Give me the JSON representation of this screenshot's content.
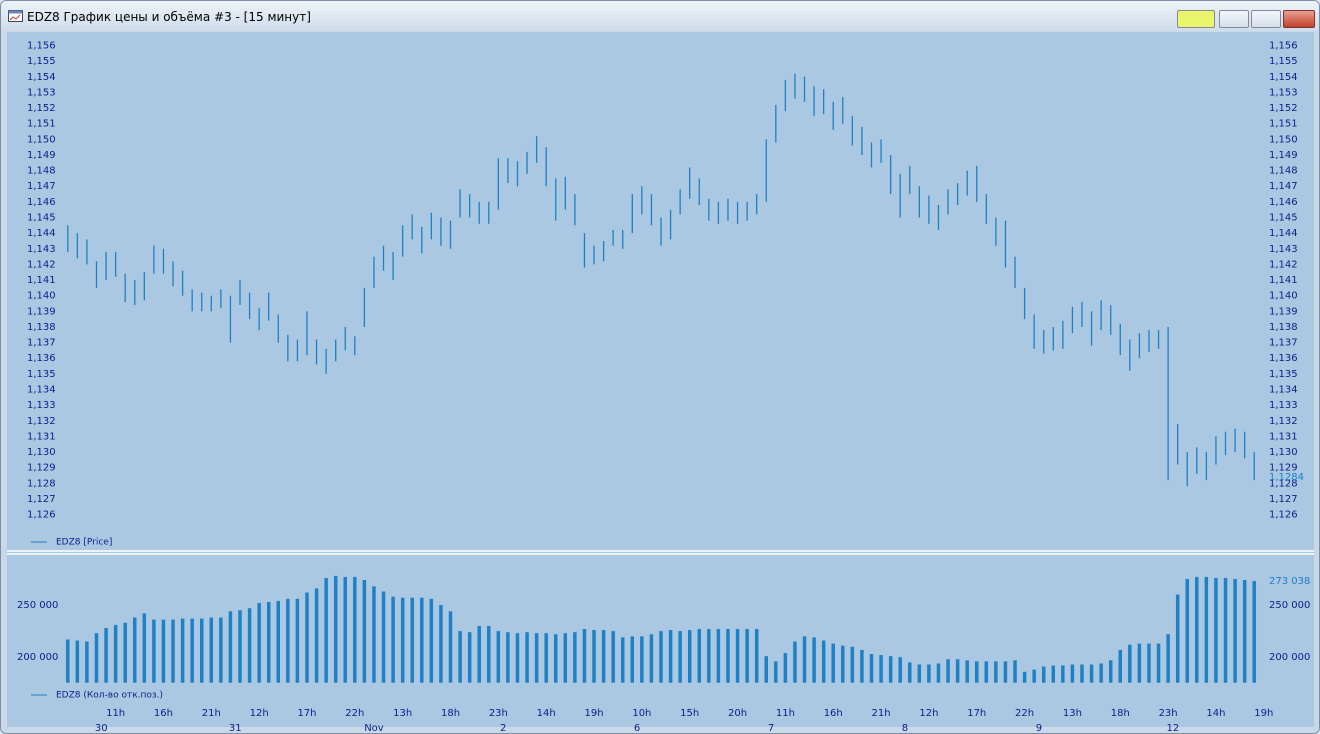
{
  "window": {
    "title": "EDZ8 График цены и объёма #3 - [15 минут]"
  },
  "chart_data": [
    {
      "type": "range",
      "legend": "EDZ8 [Price]",
      "color": "#1f80c4",
      "ylim": [
        1.1238,
        1.1568
      ],
      "xlim": [
        0,
        125
      ],
      "yticks": [
        {
          "value": 1.126,
          "label": "1,126"
        },
        {
          "value": 1.127,
          "label": "1,127"
        },
        {
          "value": 1.128,
          "label": "1,128"
        },
        {
          "value": 1.129,
          "label": "1,129"
        },
        {
          "value": 1.13,
          "label": "1,130"
        },
        {
          "value": 1.131,
          "label": "1,131"
        },
        {
          "value": 1.132,
          "label": "1,132"
        },
        {
          "value": 1.133,
          "label": "1,133"
        },
        {
          "value": 1.134,
          "label": "1,134"
        },
        {
          "value": 1.135,
          "label": "1,135"
        },
        {
          "value": 1.136,
          "label": "1,136"
        },
        {
          "value": 1.137,
          "label": "1,137"
        },
        {
          "value": 1.138,
          "label": "1,138"
        },
        {
          "value": 1.139,
          "label": "1,139"
        },
        {
          "value": 1.14,
          "label": "1,140"
        },
        {
          "value": 1.141,
          "label": "1,141"
        },
        {
          "value": 1.142,
          "label": "1,142"
        },
        {
          "value": 1.143,
          "label": "1,143"
        },
        {
          "value": 1.144,
          "label": "1,144"
        },
        {
          "value": 1.145,
          "label": "1,145"
        },
        {
          "value": 1.146,
          "label": "1,146"
        },
        {
          "value": 1.147,
          "label": "1,147"
        },
        {
          "value": 1.148,
          "label": "1,148"
        },
        {
          "value": 1.149,
          "label": "1,149"
        },
        {
          "value": 1.15,
          "label": "1,150"
        },
        {
          "value": 1.151,
          "label": "1,151"
        },
        {
          "value": 1.152,
          "label": "1,152"
        },
        {
          "value": 1.153,
          "label": "1,153"
        },
        {
          "value": 1.154,
          "label": "1,154"
        },
        {
          "value": 1.155,
          "label": "1,155"
        },
        {
          "value": 1.156,
          "label": "1,156"
        }
      ],
      "last": {
        "value": 1.1284,
        "label": "1,1284"
      },
      "high": [
        1.1445,
        1.144,
        1.1436,
        1.1422,
        1.1428,
        1.1428,
        1.1414,
        1.141,
        1.1415,
        1.1432,
        1.143,
        1.1422,
        1.1416,
        1.1404,
        1.1402,
        1.14,
        1.1404,
        1.14,
        1.141,
        1.1402,
        1.1392,
        1.1402,
        1.1388,
        1.1375,
        1.1372,
        1.139,
        1.1372,
        1.1366,
        1.1372,
        1.138,
        1.1374,
        1.1405,
        1.1425,
        1.1432,
        1.1428,
        1.1445,
        1.1452,
        1.1444,
        1.1453,
        1.145,
        1.1448,
        1.1468,
        1.1465,
        1.146,
        1.146,
        1.1488,
        1.1488,
        1.1486,
        1.1492,
        1.1502,
        1.1495,
        1.1475,
        1.1476,
        1.1465,
        1.144,
        1.1432,
        1.1435,
        1.1442,
        1.1442,
        1.1465,
        1.147,
        1.1465,
        1.145,
        1.1455,
        1.1468,
        1.1482,
        1.1475,
        1.1462,
        1.146,
        1.1462,
        1.146,
        1.146,
        1.1465,
        1.15,
        1.1522,
        1.1538,
        1.1542,
        1.154,
        1.1534,
        1.1532,
        1.1524,
        1.1527,
        1.1515,
        1.1508,
        1.1498,
        1.15,
        1.149,
        1.1478,
        1.1483,
        1.147,
        1.1464,
        1.1458,
        1.1468,
        1.1472,
        1.148,
        1.1483,
        1.1465,
        1.145,
        1.1448,
        1.1425,
        1.1405,
        1.1388,
        1.1378,
        1.138,
        1.1384,
        1.1393,
        1.1396,
        1.139,
        1.1397,
        1.1394,
        1.1382,
        1.1372,
        1.1376,
        1.1378,
        1.1378,
        1.138,
        1.1318,
        1.13,
        1.1303,
        1.13,
        1.131,
        1.1313,
        1.1315,
        1.1313,
        1.13
      ],
      "low": [
        1.1428,
        1.1424,
        1.142,
        1.1405,
        1.141,
        1.1412,
        1.1396,
        1.1394,
        1.1397,
        1.1414,
        1.1414,
        1.1406,
        1.14,
        1.139,
        1.139,
        1.139,
        1.1392,
        1.137,
        1.1394,
        1.1385,
        1.1378,
        1.1384,
        1.137,
        1.1358,
        1.1358,
        1.1362,
        1.1356,
        1.135,
        1.1358,
        1.1365,
        1.1362,
        1.138,
        1.1405,
        1.1416,
        1.141,
        1.1425,
        1.1436,
        1.1427,
        1.1436,
        1.1432,
        1.143,
        1.145,
        1.145,
        1.1446,
        1.1446,
        1.1455,
        1.1472,
        1.147,
        1.1478,
        1.1485,
        1.147,
        1.1448,
        1.1455,
        1.1445,
        1.1418,
        1.142,
        1.1422,
        1.1432,
        1.143,
        1.144,
        1.1452,
        1.1445,
        1.1432,
        1.1436,
        1.1452,
        1.1462,
        1.1458,
        1.1448,
        1.1446,
        1.1448,
        1.1446,
        1.1448,
        1.1452,
        1.146,
        1.1498,
        1.1518,
        1.1526,
        1.1524,
        1.1515,
        1.1516,
        1.1506,
        1.151,
        1.1496,
        1.149,
        1.1482,
        1.1485,
        1.1465,
        1.145,
        1.1465,
        1.145,
        1.1446,
        1.1442,
        1.1452,
        1.1458,
        1.1464,
        1.146,
        1.1446,
        1.1432,
        1.1418,
        1.1405,
        1.1385,
        1.1366,
        1.1363,
        1.1365,
        1.1366,
        1.1376,
        1.138,
        1.1368,
        1.1378,
        1.1375,
        1.1362,
        1.1352,
        1.136,
        1.1364,
        1.1366,
        1.1282,
        1.1292,
        1.1278,
        1.1286,
        1.1282,
        1.1292,
        1.1298,
        1.13,
        1.1296,
        1.1282
      ]
    },
    {
      "type": "bar",
      "legend": "EDZ8 (Кол-во отк.поз.)",
      "color": "#1f80c4",
      "ylim": [
        175000,
        292000
      ],
      "xlim": [
        0,
        125
      ],
      "yticks": [
        {
          "value": 200000,
          "label": "200 000"
        },
        {
          "value": 250000,
          "label": "250 000"
        }
      ],
      "last": {
        "value": 273038,
        "label": "273 038"
      },
      "values": [
        217000,
        216000,
        215000,
        223000,
        228000,
        231000,
        233000,
        238000,
        242000,
        236000,
        236000,
        236000,
        237000,
        237000,
        237000,
        238000,
        238000,
        244000,
        245000,
        247000,
        252000,
        253000,
        254000,
        256000,
        256000,
        262000,
        266000,
        276000,
        278000,
        277000,
        277000,
        274000,
        268000,
        263000,
        258000,
        257000,
        257000,
        257000,
        256000,
        250000,
        244000,
        225000,
        224000,
        230000,
        230000,
        225000,
        224000,
        223000,
        224000,
        223000,
        223000,
        222000,
        223000,
        224000,
        227000,
        226000,
        226000,
        225000,
        219000,
        220000,
        220000,
        222000,
        225000,
        226000,
        225000,
        226000,
        227000,
        227000,
        227000,
        227000,
        227000,
        227000,
        227000,
        201000,
        196000,
        204000,
        215000,
        220000,
        219000,
        216000,
        213000,
        211000,
        210000,
        207000,
        203000,
        202000,
        201000,
        200000,
        195000,
        193000,
        193000,
        194000,
        198000,
        198000,
        197000,
        196000,
        196000,
        196000,
        196000,
        197000,
        186000,
        188000,
        191000,
        192000,
        192000,
        193000,
        193000,
        193000,
        194000,
        197000,
        207000,
        212000,
        213000,
        213000,
        213000,
        222000,
        260000,
        275000,
        277000,
        277000,
        276000,
        276000,
        275000,
        274000,
        273038
      ],
      "xticks": [
        {
          "value": 5.5,
          "label": "11h"
        },
        {
          "value": 10.5,
          "label": "16h"
        },
        {
          "value": 15.5,
          "label": "21h"
        },
        {
          "value": 20.5,
          "label": "12h"
        },
        {
          "value": 25.5,
          "label": "17h"
        },
        {
          "value": 30.5,
          "label": "22h"
        },
        {
          "value": 35.5,
          "label": "13h"
        },
        {
          "value": 40.5,
          "label": "18h"
        },
        {
          "value": 45.5,
          "label": "23h"
        },
        {
          "value": 50.5,
          "label": "14h"
        },
        {
          "value": 55.5,
          "label": "19h"
        },
        {
          "value": 60.5,
          "label": "10h"
        },
        {
          "value": 65.5,
          "label": "15h"
        },
        {
          "value": 70.5,
          "label": "20h"
        },
        {
          "value": 75.5,
          "label": "11h"
        },
        {
          "value": 80.5,
          "label": "16h"
        },
        {
          "value": 85.5,
          "label": "21h"
        },
        {
          "value": 90.5,
          "label": "12h"
        },
        {
          "value": 95.5,
          "label": "17h"
        },
        {
          "value": 100.5,
          "label": "22h"
        },
        {
          "value": 105.5,
          "label": "13h"
        },
        {
          "value": 110.5,
          "label": "18h"
        },
        {
          "value": 115.5,
          "label": "23h"
        },
        {
          "value": 120.5,
          "label": "14h"
        },
        {
          "value": 125.5,
          "label": "19h"
        }
      ],
      "xticks_dates": [
        {
          "value": 4,
          "label": "30"
        },
        {
          "value": 18,
          "label": "31"
        },
        {
          "value": 32.5,
          "label": "Nov"
        },
        {
          "value": 46,
          "label": "2"
        },
        {
          "value": 60,
          "label": "6"
        },
        {
          "value": 74,
          "label": "7"
        },
        {
          "value": 88,
          "label": "8"
        },
        {
          "value": 102,
          "label": "9"
        },
        {
          "value": 116,
          "label": "12"
        }
      ]
    }
  ]
}
